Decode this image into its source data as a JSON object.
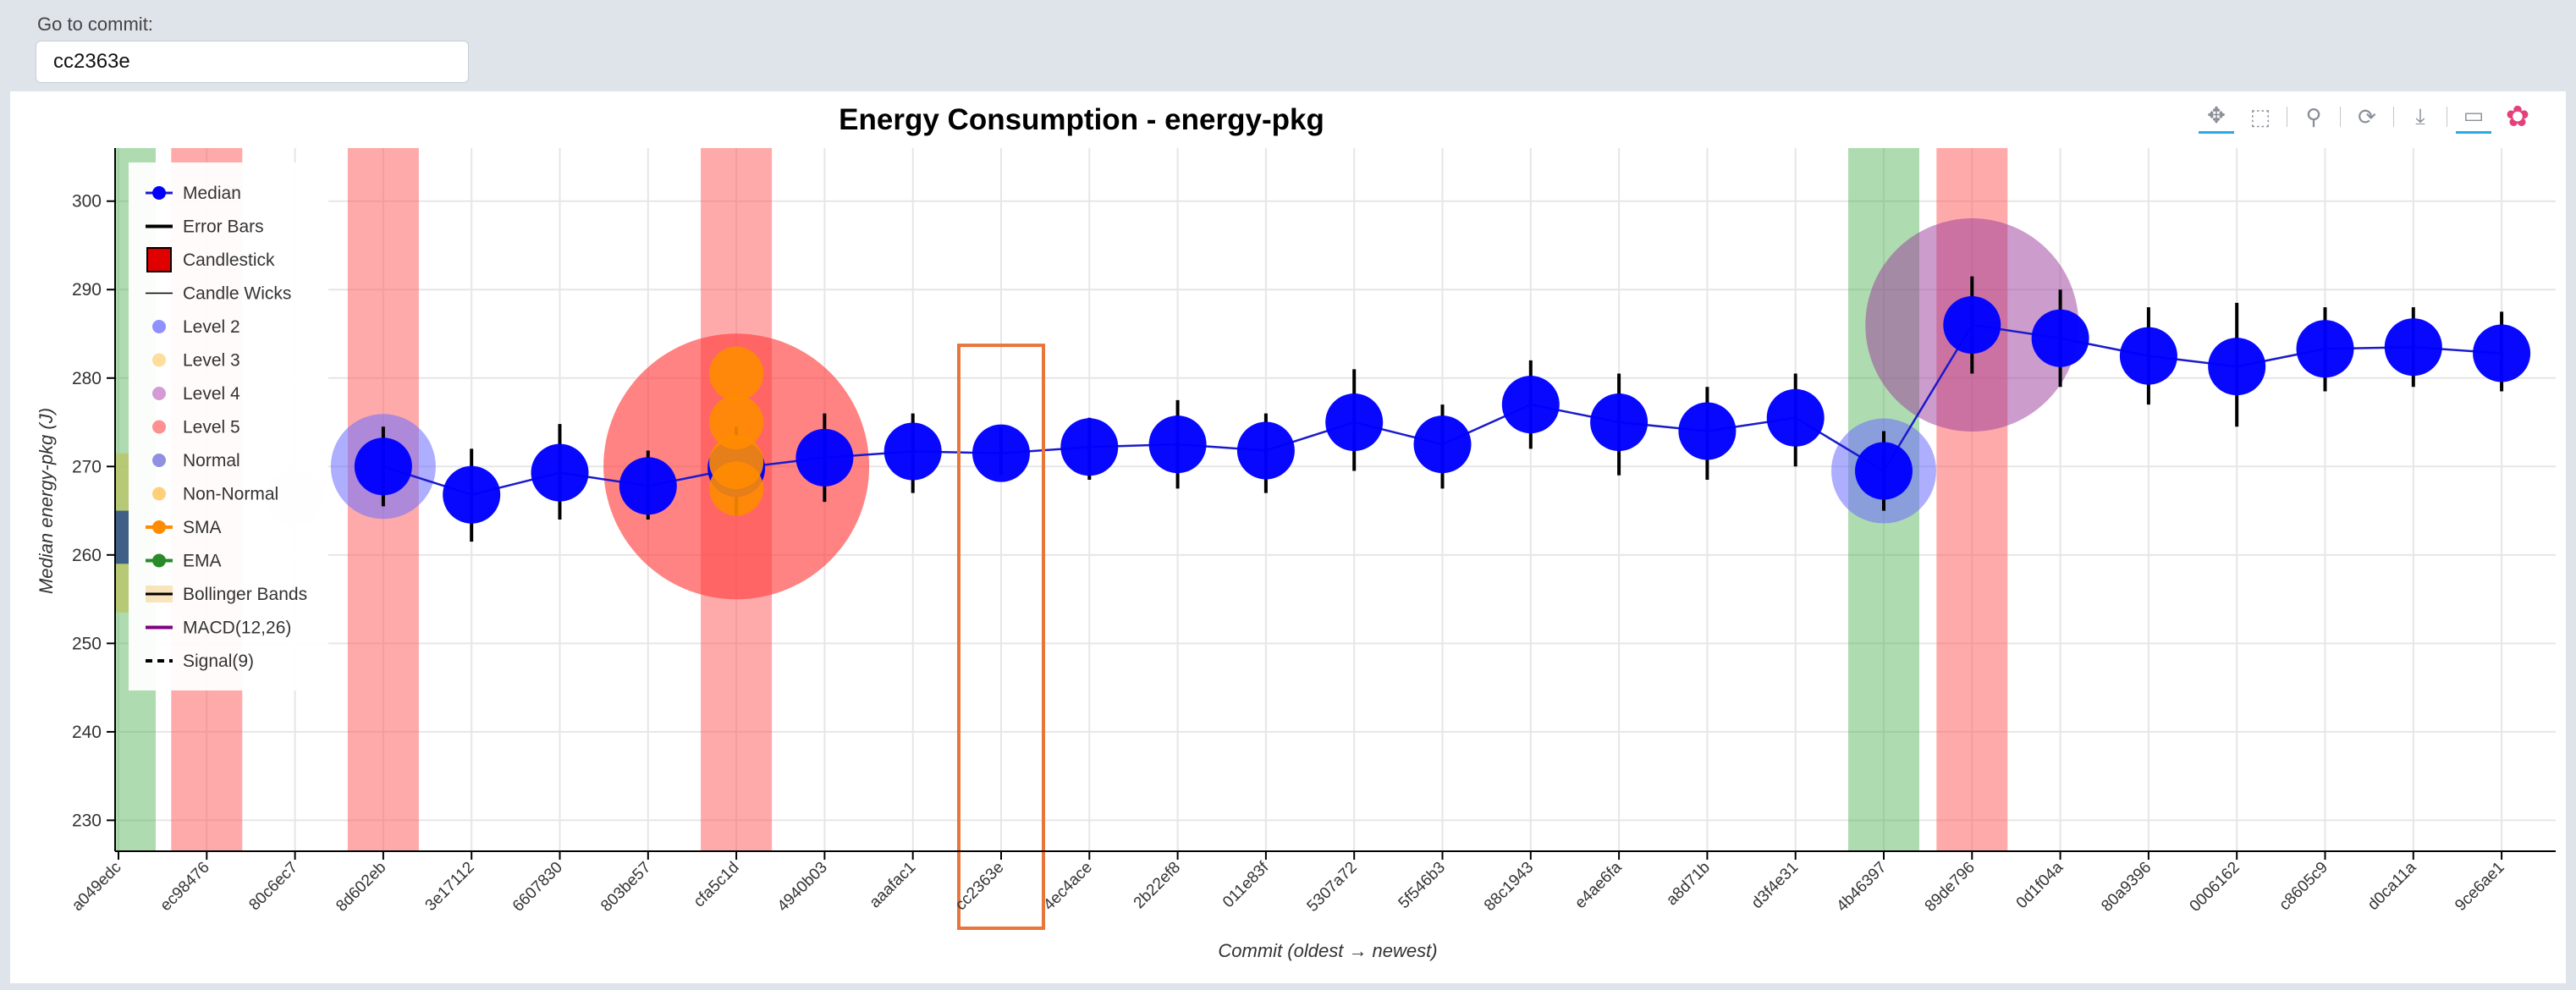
{
  "goto": {
    "label": "Go to commit:",
    "value": "cc2363e"
  },
  "toolbar": [
    {
      "name": "pan-tool-icon",
      "glyph": "✥",
      "active": true
    },
    {
      "name": "box-zoom-tool-icon",
      "glyph": "⬚",
      "active": false
    },
    {
      "name": "wheel-zoom-tool-icon",
      "glyph": "⚲",
      "active": false
    },
    {
      "name": "reset-tool-icon",
      "glyph": "⟳",
      "active": false
    },
    {
      "name": "save-tool-icon",
      "glyph": "⤓",
      "active": false
    },
    {
      "name": "hover-tool-icon",
      "glyph": "▭",
      "active": true
    },
    {
      "name": "bokeh-logo-icon",
      "glyph": "✿",
      "active": false
    }
  ],
  "colors": {
    "median": "#0000ff",
    "line": "#1a1acc",
    "error": "#000000",
    "sma": "#ff8c00",
    "highlight_box": "#e8763a",
    "green_band": "#4caf50",
    "red_band": "#ff5555"
  },
  "legend": [
    {
      "label": "Median",
      "glyph": "median"
    },
    {
      "label": "Error Bars",
      "glyph": "line-black"
    },
    {
      "label": "Candlestick",
      "glyph": "candle"
    },
    {
      "label": "Candle Wicks",
      "glyph": "line-thin"
    },
    {
      "label": "Level 2",
      "glyph": "dot",
      "color": "#6b6bff"
    },
    {
      "label": "Level 3",
      "glyph": "dot",
      "color": "#ffd27a"
    },
    {
      "label": "Level 4",
      "glyph": "dot",
      "color": "#c57ac5"
    },
    {
      "label": "Level 5",
      "glyph": "dot",
      "color": "#ff6b6b"
    },
    {
      "label": "Normal",
      "glyph": "dot",
      "color": "#6b6bd6"
    },
    {
      "label": "Non-Normal",
      "glyph": "dot",
      "color": "#ffc04d"
    },
    {
      "label": "SMA",
      "glyph": "line-dot",
      "color": "#ff8c00"
    },
    {
      "label": "EMA",
      "glyph": "line-dot",
      "color": "#2a8a2a"
    },
    {
      "label": "Bollinger Bands",
      "glyph": "band"
    },
    {
      "label": "MACD(12,26)",
      "glyph": "line-purple",
      "color": "#800080"
    },
    {
      "label": "Signal(9)",
      "glyph": "line-dash"
    }
  ],
  "chart_data": {
    "type": "line",
    "title": "Energy Consumption - energy-pkg",
    "xlabel": "Commit (oldest → newest)",
    "ylabel": "Median energy-pkg (J)",
    "ylim": [
      226.5,
      306
    ],
    "yticks": [
      230,
      240,
      250,
      260,
      270,
      280,
      290,
      300
    ],
    "grid": true,
    "legend_position": "top-left",
    "categories": [
      "a049edc",
      "ec98476",
      "80c6ec7",
      "8d602eb",
      "3e17112",
      "6607830",
      "803be57",
      "cfa5c1d",
      "4940b03",
      "aaafac1",
      "cc2363e",
      "4ec4ace",
      "2b22ef8",
      "011e83f",
      "5307a72",
      "5f546b3",
      "88c1943",
      "e4ae6fa",
      "a8d71b",
      "d3f4e31",
      "4b46397",
      "89de796",
      "0d1f04a",
      "80a9396",
      "0006162",
      "c8605c9",
      "d0ca11a",
      "9ce6ae1"
    ],
    "series": [
      {
        "name": "Median",
        "values": [
          null,
          null,
          266.5,
          270,
          266.8,
          269.3,
          267.8,
          269.8,
          271,
          271.7,
          271.5,
          272.2,
          272.5,
          271.8,
          275,
          272.5,
          277,
          275,
          274,
          275.5,
          269.5,
          286,
          284.5,
          282.5,
          281.3,
          283.3,
          283.5,
          282.8
        ],
        "error_low": [
          null,
          null,
          null,
          265.5,
          261.5,
          264,
          264,
          264.5,
          266,
          267,
          269,
          268.5,
          267.5,
          267,
          269.5,
          267.5,
          272,
          269,
          268.5,
          270,
          265,
          280.5,
          279,
          277,
          274.5,
          278.5,
          279,
          278.5
        ],
        "error_high": [
          null,
          null,
          null,
          274.5,
          272,
          274.8,
          271.8,
          274.5,
          276,
          276,
          274.5,
          275.5,
          277.5,
          276,
          281,
          277,
          282,
          280.5,
          279,
          280.5,
          274,
          291.5,
          290,
          288,
          288.5,
          288,
          288,
          287.5
        ]
      }
    ],
    "sma_points": [
      {
        "x": "cfa5c1d",
        "y": 280.5
      },
      {
        "x": "cfa5c1d",
        "y": 275
      },
      {
        "x": "cfa5c1d",
        "y": 270.5
      },
      {
        "x": "cfa5c1d",
        "y": 267.5
      }
    ],
    "green_bands": [
      "a049edc",
      "4b46397"
    ],
    "red_bands": [
      "ec98476",
      "8d602eb",
      "cfa5c1d",
      "89de796"
    ],
    "anomaly_circles": [
      {
        "x": "8d602eb",
        "y": 270,
        "level": "Level 2"
      },
      {
        "x": "cfa5c1d",
        "y": 270,
        "level": "Level 5"
      },
      {
        "x": "4b46397",
        "y": 269.5,
        "level": "Level 2"
      },
      {
        "x": "89de796",
        "y": 286,
        "level": "Level 4"
      }
    ],
    "highlighted_commit": "cc2363e"
  }
}
